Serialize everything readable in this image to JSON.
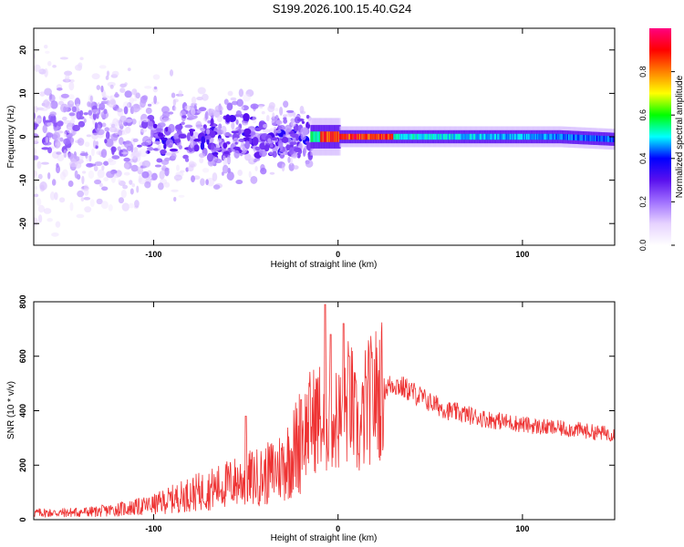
{
  "title": "S199.2026.100.15.40.G24",
  "colors": {
    "snr_line": "#ee3333",
    "spectrum_scale": [
      "#ffffff",
      "#e6d2ff",
      "#a070ff",
      "#5a10ee",
      "#0000ff",
      "#00ffff",
      "#00ff00",
      "#ffff00",
      "#ff8000",
      "#ff0000",
      "#ff0080"
    ]
  },
  "chart_data": [
    {
      "type": "heatmap",
      "name": "spectrogram",
      "xlabel": "Height of straight line (km)",
      "ylabel": "Frequency (Hz)",
      "xlim": [
        -165,
        150
      ],
      "ylim": [
        -25,
        25
      ],
      "xticks": [
        "-100",
        "0",
        "100"
      ],
      "yticks": [
        "-20",
        "-10",
        "0",
        "10",
        "20"
      ],
      "colorbar": {
        "label": "Normalized spectral amplitude",
        "range": [
          0,
          1
        ],
        "ticks": [
          "0.0",
          "0.2",
          "0.4",
          "0.6",
          "0.8"
        ]
      },
      "description_of_features": {
        "broad_noise_region_km": [
          -165,
          -15
        ],
        "narrow_signal_band_km": [
          -15,
          150
        ],
        "signal_center_freq_hz": 0,
        "signal_halfwidth_hz": 1.5,
        "peak_amplitude_region_km": [
          -10,
          30
        ]
      }
    },
    {
      "type": "line",
      "name": "snr",
      "xlabel": "Height of straight line (km)",
      "ylabel": "SNR (10 * v/v)",
      "xlim": [
        -165,
        150
      ],
      "ylim": [
        0,
        800
      ],
      "xticks": [
        "-100",
        "0",
        "100"
      ],
      "yticks": [
        "0",
        "200",
        "400",
        "600",
        "800"
      ],
      "series": [
        {
          "name": "SNR",
          "x": [
            -165,
            -150,
            -130,
            -110,
            -100,
            -90,
            -80,
            -70,
            -60,
            -50,
            -40,
            -30,
            -25,
            -20,
            -15,
            -10,
            -7,
            -5,
            -2,
            0,
            3,
            6,
            9,
            12,
            15,
            20,
            25,
            30,
            40,
            50,
            60,
            70,
            80,
            90,
            100,
            110,
            120,
            130,
            140,
            150
          ],
          "values": [
            25,
            25,
            30,
            45,
            55,
            75,
            95,
            110,
            130,
            150,
            160,
            200,
            240,
            300,
            360,
            380,
            300,
            420,
            360,
            380,
            340,
            480,
            360,
            300,
            420,
            460,
            480,
            500,
            470,
            430,
            400,
            385,
            370,
            360,
            350,
            340,
            335,
            330,
            320,
            315
          ]
        }
      ],
      "spikes": [
        {
          "x": -7,
          "value": 790
        },
        {
          "x": -4,
          "value": 680
        },
        {
          "x": 3,
          "value": 720
        },
        {
          "x": 6,
          "value": 600
        },
        {
          "x": -50,
          "value": 380
        },
        {
          "x": -20,
          "value": 440
        }
      ]
    }
  ]
}
